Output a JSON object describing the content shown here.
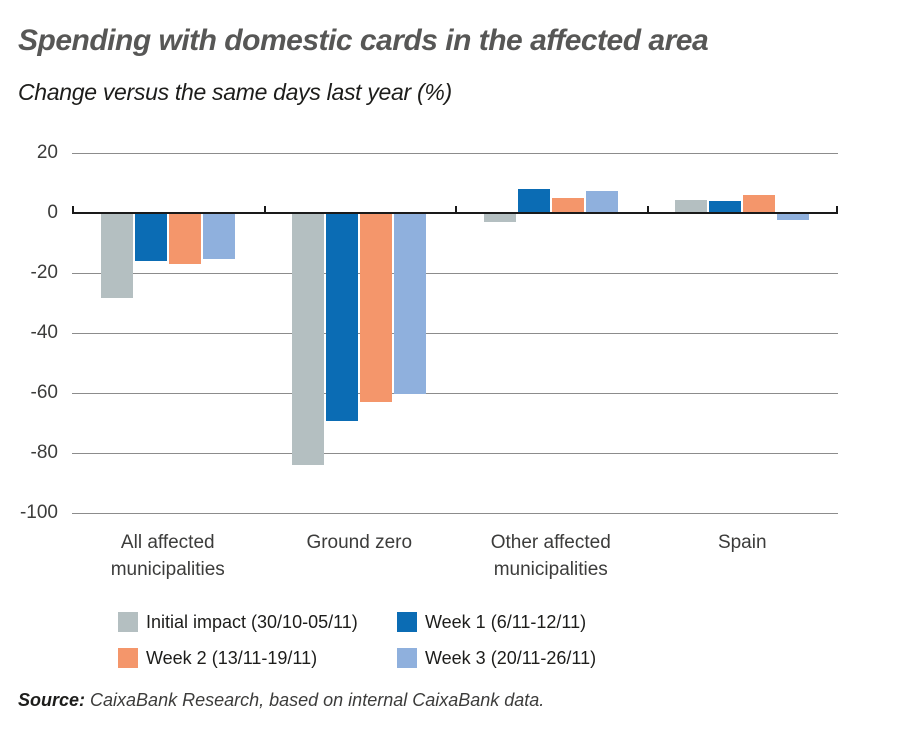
{
  "chart_data": {
    "type": "bar",
    "title": "Spending with domestic cards in the affected area",
    "subtitle": "Change versus the same days last year (%)",
    "categories": [
      "All affected municipalities",
      "Ground zero",
      "Other affected municipalities",
      "Spain"
    ],
    "category_label_lines": [
      [
        "All affected",
        "municipalities"
      ],
      [
        "Ground zero"
      ],
      [
        "Other affected",
        "municipalities"
      ],
      [
        "Spain"
      ]
    ],
    "series": [
      {
        "name": "Initial impact (30/10-05/11)",
        "color": "#b4bfc1",
        "values": [
          -28,
          -83.5,
          -2.5,
          4.5
        ]
      },
      {
        "name": "Week 1 (6/11-12/11)",
        "color": "#0b6cb4",
        "values": [
          -15.5,
          -69,
          8,
          4
        ]
      },
      {
        "name": "Week 2 (13/11-19/11)",
        "color": "#f4966b",
        "values": [
          -16.5,
          -62.5,
          5,
          6
        ]
      },
      {
        "name": "Week 3 (20/11-26/11)",
        "color": "#8fb0dd",
        "values": [
          -15,
          -60,
          7.5,
          -2
        ]
      }
    ],
    "y_axis": {
      "ticks": [
        20,
        0,
        -20,
        -40,
        -60,
        -80,
        -100
      ],
      "max": 20,
      "min": -100
    },
    "grid": true,
    "legend_position": "bottom",
    "ylabel": "",
    "xlabel": ""
  },
  "colors": {
    "gridline": "#8c8c8c",
    "zero_axis": "#1a1a1a",
    "title": "#575756",
    "text": "#1d1d1b",
    "muted_text": "#3c3c3b"
  },
  "source": {
    "label": "Source:",
    "text": " CaixaBank Research, based on internal CaixaBank data."
  }
}
